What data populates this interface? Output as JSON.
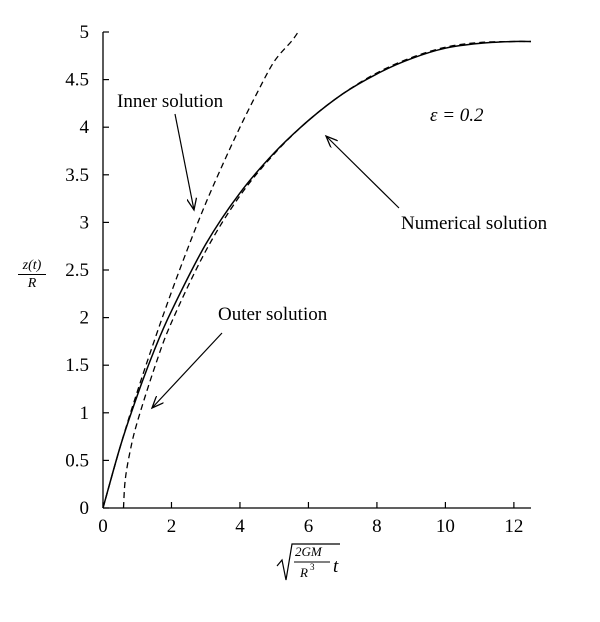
{
  "chart_data": {
    "type": "line",
    "title": "",
    "xlabel": "√(2GM/R³) t",
    "ylabel": "z(t)/R",
    "xlim": [
      0,
      12.5
    ],
    "ylim": [
      0,
      5
    ],
    "x_ticks": [
      "0",
      "2",
      "4",
      "6",
      "8",
      "10",
      "12"
    ],
    "y_ticks": [
      "0",
      "0.5",
      "1",
      "1.5",
      "2",
      "2.5",
      "3",
      "3.5",
      "4",
      "4.5",
      "5"
    ],
    "grid": false,
    "series": [
      {
        "name": "Numerical solution",
        "style": "solid",
        "x": [
          0,
          0.5,
          1,
          1.5,
          2,
          3,
          4,
          5,
          6,
          7,
          8,
          9,
          10,
          11,
          12,
          12.5
        ],
        "y": [
          0,
          0.64,
          1.18,
          1.66,
          2.07,
          2.77,
          3.31,
          3.73,
          4.07,
          4.35,
          4.56,
          4.72,
          4.83,
          4.88,
          4.9,
          4.9
        ]
      },
      {
        "name": "Inner solution",
        "style": "dashed",
        "x": [
          0,
          0.5,
          1,
          1.5,
          2,
          2.5,
          3,
          3.5,
          4,
          4.5,
          5,
          5.5,
          5.7
        ],
        "y": [
          0,
          0.64,
          1.22,
          1.76,
          2.27,
          2.75,
          3.2,
          3.61,
          4.0,
          4.36,
          4.69,
          4.9,
          5.0
        ]
      },
      {
        "name": "Outer solution",
        "style": "dashed",
        "x": [
          0.6,
          0.65,
          0.8,
          1,
          1.5,
          2,
          3,
          4,
          5,
          6,
          7,
          8,
          9,
          10,
          11,
          12,
          12.5
        ],
        "y": [
          0,
          0.3,
          0.61,
          0.9,
          1.47,
          1.95,
          2.7,
          3.28,
          3.72,
          4.07,
          4.35,
          4.57,
          4.73,
          4.84,
          4.89,
          4.9,
          4.9
        ]
      }
    ],
    "annotations": {
      "inner_label": "Inner solution",
      "outer_label": "Outer solution",
      "numerical_label": "Numerical solution",
      "epsilon": "ε = 0.2"
    }
  }
}
